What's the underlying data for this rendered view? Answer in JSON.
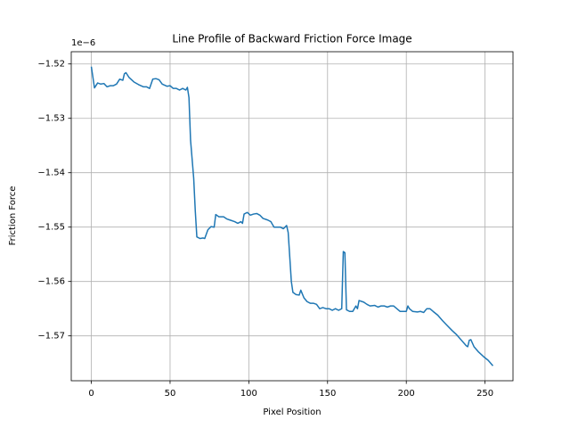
{
  "chart_data": {
    "type": "line",
    "title": "Line Profile of Backward Friction Force Image",
    "x_label": "Pixel Position",
    "y_label": "Friction Force",
    "y_offset_label": "1e−6",
    "x": [
      0,
      2,
      4,
      6,
      8,
      10,
      12,
      14,
      16,
      18,
      20,
      21,
      22,
      24,
      27,
      30,
      33,
      35,
      37,
      39,
      41,
      43,
      45,
      48,
      50,
      52,
      54,
      56,
      58,
      60,
      61,
      62,
      63,
      65,
      66,
      67,
      69,
      71,
      72,
      74,
      76,
      78,
      79,
      81,
      84,
      86,
      88,
      91,
      93,
      95,
      96,
      97,
      99,
      101,
      103,
      105,
      107,
      109,
      112,
      114,
      116,
      118,
      120,
      122,
      124,
      125,
      126,
      127,
      128,
      130,
      132,
      133,
      135,
      137,
      139,
      141,
      143,
      145,
      147,
      149,
      151,
      153,
      155,
      157,
      159,
      160,
      161,
      162,
      164,
      166,
      168,
      169,
      170,
      173,
      175,
      177,
      180,
      182,
      184,
      186,
      188,
      190,
      192,
      194,
      196,
      198,
      200,
      201,
      202,
      204,
      207,
      209,
      211,
      213,
      215,
      217,
      220,
      223,
      226,
      229,
      232,
      235,
      238,
      239,
      240,
      241,
      243,
      246,
      249,
      252,
      255
    ],
    "series": [
      {
        "name": "Friction Force",
        "color": "#1f77b4",
        "values": [
          -1.5205,
          -1.5244,
          -1.5235,
          -1.5237,
          -1.5236,
          -1.5242,
          -1.524,
          -1.524,
          -1.5237,
          -1.5228,
          -1.523,
          -1.5218,
          -1.5216,
          -1.5225,
          -1.5233,
          -1.5238,
          -1.5242,
          -1.5242,
          -1.5245,
          -1.5228,
          -1.5227,
          -1.5229,
          -1.5237,
          -1.5241,
          -1.524,
          -1.5245,
          -1.5245,
          -1.5248,
          -1.5245,
          -1.5248,
          -1.5243,
          -1.5262,
          -1.534,
          -1.541,
          -1.547,
          -1.5518,
          -1.5521,
          -1.552,
          -1.5521,
          -1.5505,
          -1.5499,
          -1.55,
          -1.5477,
          -1.5481,
          -1.5481,
          -1.5485,
          -1.5487,
          -1.549,
          -1.5493,
          -1.549,
          -1.5493,
          -1.5476,
          -1.5473,
          -1.5478,
          -1.5476,
          -1.5475,
          -1.5478,
          -1.5484,
          -1.5487,
          -1.549,
          -1.55,
          -1.55,
          -1.55,
          -1.5503,
          -1.5497,
          -1.551,
          -1.5555,
          -1.56,
          -1.562,
          -1.5624,
          -1.5625,
          -1.5616,
          -1.563,
          -1.5637,
          -1.564,
          -1.564,
          -1.5642,
          -1.565,
          -1.5648,
          -1.565,
          -1.565,
          -1.5653,
          -1.565,
          -1.5653,
          -1.565,
          -1.5545,
          -1.5547,
          -1.5652,
          -1.5655,
          -1.5655,
          -1.5645,
          -1.565,
          -1.5635,
          -1.5638,
          -1.5642,
          -1.5645,
          -1.5644,
          -1.5647,
          -1.5645,
          -1.5645,
          -1.5647,
          -1.5645,
          -1.5645,
          -1.565,
          -1.5655,
          -1.5655,
          -1.5655,
          -1.5645,
          -1.565,
          -1.5655,
          -1.5656,
          -1.5655,
          -1.5657,
          -1.565,
          -1.565,
          -1.5655,
          -1.5662,
          -1.5672,
          -1.5681,
          -1.569,
          -1.5698,
          -1.5708,
          -1.5718,
          -1.572,
          -1.5708,
          -1.5707,
          -1.572,
          -1.573,
          -1.5738,
          -1.5745,
          -1.5755
        ]
      }
    ],
    "xlim": [
      -12.75,
      267.75
    ],
    "ylim": [
      -1.57825,
      -1.51775
    ],
    "xticks": [
      0,
      50,
      100,
      150,
      200,
      250
    ],
    "yticks": [
      {
        "value": -1.57,
        "label": "−1.57"
      },
      {
        "value": -1.56,
        "label": "−1.56"
      },
      {
        "value": -1.55,
        "label": "−1.55"
      },
      {
        "value": -1.54,
        "label": "−1.54"
      },
      {
        "value": -1.53,
        "label": "−1.53"
      },
      {
        "value": -1.52,
        "label": "−1.52"
      }
    ],
    "grid": true
  }
}
